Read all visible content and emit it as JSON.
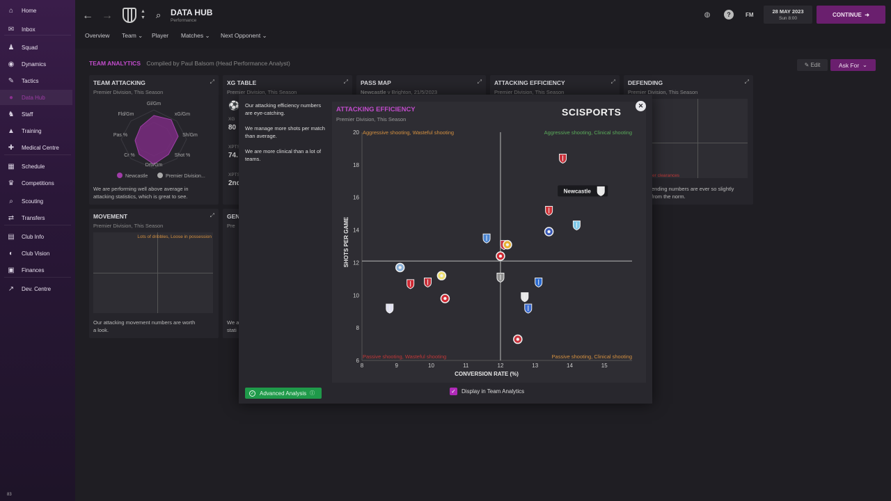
{
  "sidebar": {
    "items": [
      {
        "label": "Home",
        "icon": "home-icon",
        "glyph": "⌂"
      },
      {
        "label": "Inbox",
        "icon": "inbox-icon",
        "glyph": "✉"
      },
      {
        "label": "Squad",
        "icon": "squad-icon",
        "glyph": "♟"
      },
      {
        "label": "Dynamics",
        "icon": "dynamics-icon",
        "glyph": "◉"
      },
      {
        "label": "Tactics",
        "icon": "tactics-icon",
        "glyph": "✎"
      },
      {
        "label": "Data Hub",
        "icon": "data-hub-icon",
        "glyph": "●"
      },
      {
        "label": "Staff",
        "icon": "staff-icon",
        "glyph": "♞"
      },
      {
        "label": "Training",
        "icon": "training-icon",
        "glyph": "▲"
      },
      {
        "label": "Medical Centre",
        "icon": "medical-icon",
        "glyph": "✚"
      },
      {
        "label": "Schedule",
        "icon": "schedule-icon",
        "glyph": "▦"
      },
      {
        "label": "Competitions",
        "icon": "trophy-icon",
        "glyph": "♛"
      },
      {
        "label": "Scouting",
        "icon": "scouting-icon",
        "glyph": "⌕"
      },
      {
        "label": "Transfers",
        "icon": "transfers-icon",
        "glyph": "⇄"
      },
      {
        "label": "Club Info",
        "icon": "club-info-icon",
        "glyph": "▤"
      },
      {
        "label": "Club Vision",
        "icon": "club-vision-icon",
        "glyph": "◐"
      },
      {
        "label": "Finances",
        "icon": "finances-icon",
        "glyph": "▣"
      },
      {
        "label": "Dev. Centre",
        "icon": "dev-centre-icon",
        "glyph": "↗"
      }
    ],
    "footer": "83"
  },
  "header": {
    "title": "DATA HUB",
    "subtitle": "Performance",
    "tabs": [
      "Overview",
      "Team",
      "Player",
      "Matches",
      "Next Opponent"
    ],
    "fm": "FM",
    "date": "28 MAY 2023",
    "time": "Sun 8:00",
    "continue": "CONTINUE"
  },
  "team_analytics": {
    "title": "TEAM ANALYTICS",
    "compiled": "Compiled by Paul Balsom (Head Performance Analyst)",
    "edit": "Edit",
    "ask_for": "Ask For"
  },
  "cards": {
    "team_attacking": {
      "title": "TEAM ATTACKING",
      "sub": "Premier Division, This Season",
      "axes": [
        "Gl/Gm",
        "xG/Gm",
        "Sh/Gm",
        "Shot %",
        "Drb/Gm",
        "Cr %",
        "Pas %",
        "Fld/Gm"
      ],
      "legend": [
        "Newcastle",
        "Premier Division..."
      ],
      "desc1": "We are performing well above average in",
      "desc2": "attacking statistics, which is great to see."
    },
    "xg_table": {
      "title": "XG TABLE",
      "sub": "Premier Division, This Season",
      "l1": "XG",
      "v1": "80",
      "l2": "XPTS",
      "v2": "74.",
      "l3": "XPTS",
      "v3": "2nd"
    },
    "pass_map": {
      "title": "PASS MAP",
      "team": "Newcastle",
      "rest": "v Brighton, 21/5/2023"
    },
    "attacking_efficiency": {
      "title": "ATTACKING EFFICIENCY",
      "sub": "Premier Division, This Season"
    },
    "defending": {
      "title": "DEFENDING",
      "sub": "Premier Division, This Season",
      "quad": "Blocks, Fewer clearances",
      "desc1": "ending numbers are ever so slightly",
      "desc2": "from the norm."
    },
    "movement": {
      "title": "MOVEMENT",
      "sub": "Premier Division, This Season",
      "quad": "Lots of dribbles, Loose in possession",
      "desc1": "Our attacking movement numbers are worth",
      "desc2": "a look."
    },
    "gen": {
      "title": "GEN",
      "sub": "Pre",
      "d1": "We a",
      "d2": "stati"
    }
  },
  "modal": {
    "notes": [
      "Our attacking efficiency numbers are eye-catching.",
      "We manage more shots per match than average.",
      "We are more clinical than a lot of teams."
    ],
    "title": "ATTACKING EFFICIENCY",
    "subtitle": "Premier Division, This Season",
    "brand": "SCISPORTS",
    "advanced": "Advanced Analysis",
    "display": "Display in Team Analytics"
  },
  "chart_data": {
    "type": "scatter",
    "xlabel": "CONVERSION RATE (%)",
    "ylabel": "SHOTS PER GAME",
    "xlim": [
      8,
      15.8
    ],
    "ylim": [
      6,
      20
    ],
    "xticks": [
      8,
      9,
      10,
      11,
      12,
      13,
      14,
      15
    ],
    "yticks": [
      6,
      8,
      10,
      12,
      14,
      16,
      18,
      20
    ],
    "avg_x": 12,
    "avg_y": 12.1,
    "quadrants": {
      "top_left": "Aggressive shooting, Wasteful shooting",
      "top_right": "Aggressive shooting, Clinical shooting",
      "bottom_left": "Passive shooting, Wasteful shooting",
      "bottom_right": "Passive shooting, Clinical shooting"
    },
    "highlight_label": "Newcastle",
    "points": [
      {
        "x": 13.8,
        "y": 18.4,
        "color": "#c8323c",
        "shape": "shield"
      },
      {
        "x": 14.9,
        "y": 16.4,
        "color": "#e8e8e8",
        "shape": "shield",
        "highlight": true
      },
      {
        "x": 13.4,
        "y": 15.2,
        "color": "#d0343a",
        "shape": "shield"
      },
      {
        "x": 14.2,
        "y": 14.3,
        "color": "#7ec8e8",
        "shape": "shield"
      },
      {
        "x": 13.4,
        "y": 13.9,
        "color": "#3a5ab8",
        "shape": "circle"
      },
      {
        "x": 11.6,
        "y": 13.5,
        "color": "#4a84d0",
        "shape": "shield"
      },
      {
        "x": 12.1,
        "y": 13.1,
        "color": "#c8323c",
        "shape": "shield"
      },
      {
        "x": 12.2,
        "y": 13.1,
        "color": "#e8b030",
        "shape": "circle"
      },
      {
        "x": 12.0,
        "y": 12.4,
        "color": "#d02832",
        "shape": "circle"
      },
      {
        "x": 9.1,
        "y": 11.7,
        "color": "#8ab0d8",
        "shape": "circle"
      },
      {
        "x": 10.3,
        "y": 11.2,
        "color": "#f0e070",
        "shape": "circle"
      },
      {
        "x": 12.0,
        "y": 11.1,
        "color": "#909090",
        "shape": "shield"
      },
      {
        "x": 13.1,
        "y": 10.8,
        "color": "#2a6ad0",
        "shape": "shield"
      },
      {
        "x": 9.4,
        "y": 10.7,
        "color": "#d02832",
        "shape": "shield"
      },
      {
        "x": 9.9,
        "y": 10.8,
        "color": "#c8323c",
        "shape": "shield"
      },
      {
        "x": 10.4,
        "y": 9.8,
        "color": "#d02832",
        "shape": "circle"
      },
      {
        "x": 12.7,
        "y": 9.9,
        "color": "#e8e8e8",
        "shape": "shield"
      },
      {
        "x": 12.8,
        "y": 9.2,
        "color": "#3a6ad0",
        "shape": "shield"
      },
      {
        "x": 8.8,
        "y": 9.2,
        "color": "#e0e0f0",
        "shape": "shield"
      },
      {
        "x": 12.5,
        "y": 7.3,
        "color": "#c8323c",
        "shape": "circle"
      }
    ]
  }
}
